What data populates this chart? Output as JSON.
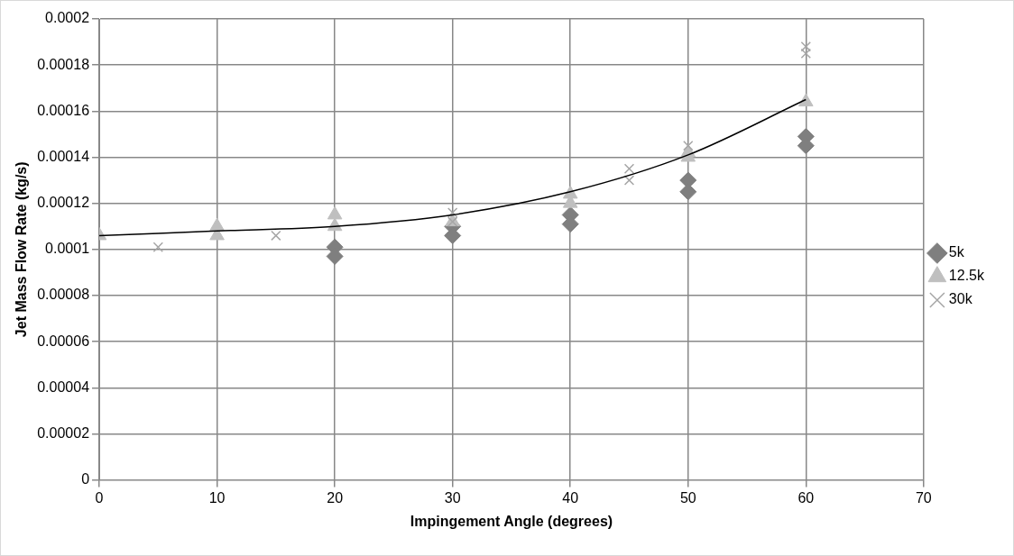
{
  "chart_data": {
    "type": "scatter",
    "xlabel": "Impingement Angle (degrees)",
    "ylabel": "Jet Mass Flow Rate (kg/s)",
    "xlim": [
      0,
      70
    ],
    "xticks": [
      0,
      10,
      20,
      30,
      40,
      50,
      60,
      70
    ],
    "ylim": [
      0,
      0.0002
    ],
    "yticks": [
      {
        "value": 0,
        "label": "0"
      },
      {
        "value": 2e-05,
        "label": "0.00002"
      },
      {
        "value": 4e-05,
        "label": "0.00004"
      },
      {
        "value": 6e-05,
        "label": "0.00006"
      },
      {
        "value": 8e-05,
        "label": "0.00008"
      },
      {
        "value": 0.0001,
        "label": "0.0001"
      },
      {
        "value": 0.00012,
        "label": "0.00012"
      },
      {
        "value": 0.00014,
        "label": "0.00014"
      },
      {
        "value": 0.00016,
        "label": "0.00016"
      },
      {
        "value": 0.00018,
        "label": "0.00018"
      },
      {
        "value": 0.0002,
        "label": "0.0002"
      }
    ],
    "grid": true,
    "legend": "right",
    "series": [
      {
        "name": "5k",
        "color": "#7f7f7f",
        "marker": "diamond",
        "x": [
          20,
          20,
          30,
          30,
          40,
          40,
          50,
          50,
          60,
          60
        ],
        "values": [
          0.000101,
          9.7e-05,
          0.00011,
          0.000106,
          0.000115,
          0.000111,
          0.00013,
          0.000125,
          0.000149,
          0.000145
        ]
      },
      {
        "name": "12.5k",
        "color": "#bfbfbf",
        "marker": "triangle",
        "x": [
          0,
          10,
          10,
          20,
          20,
          30,
          40,
          40,
          50,
          50,
          60
        ],
        "values": [
          0.000106,
          0.000106,
          0.00011,
          0.00011,
          0.000115,
          0.000112,
          0.00012,
          0.000124,
          0.00014,
          0.000142,
          0.000164
        ]
      },
      {
        "name": "30k",
        "color": "#a6a6a6",
        "marker": "cross",
        "x": [
          5,
          15,
          30,
          30,
          45,
          45,
          50,
          60,
          60
        ],
        "values": [
          0.000101,
          0.000106,
          0.000116,
          0.000112,
          0.00013,
          0.000135,
          0.000145,
          0.000188,
          0.000185
        ]
      },
      {
        "type": "line",
        "color": "#000000",
        "marker": "none",
        "x": [
          0,
          10,
          20,
          30,
          40,
          50,
          60
        ],
        "values": [
          0.000106,
          0.000108,
          0.00011,
          0.000115,
          0.000125,
          0.000141,
          0.000165
        ]
      }
    ]
  }
}
